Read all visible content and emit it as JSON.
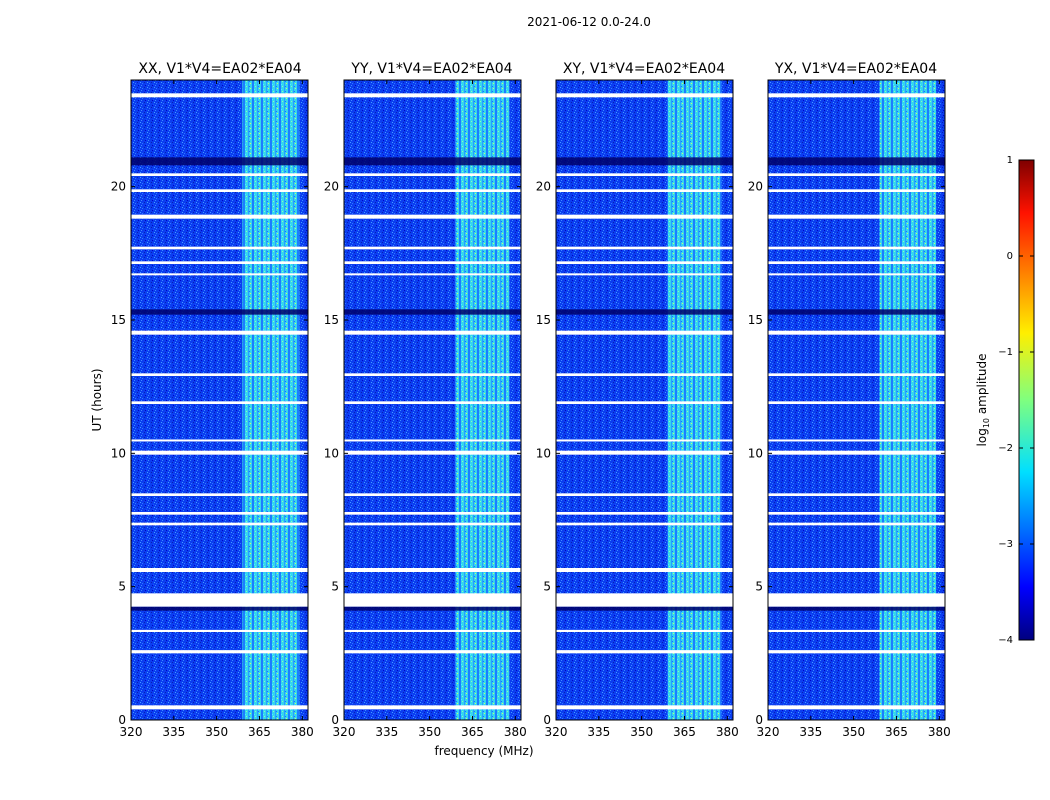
{
  "chart_data": {
    "type": "heatmap",
    "suptitle": "2021-06-12 0.0-24.0",
    "xlabel": "frequency (MHz)",
    "ylabel": "UT (hours)",
    "xlim": [
      320,
      382
    ],
    "ylim": [
      0,
      24
    ],
    "xticks": [
      320,
      335,
      350,
      365,
      380
    ],
    "yticks": [
      0,
      5,
      10,
      15,
      20
    ],
    "panels": [
      {
        "title": "XX, V1*V4=EA02*EA04",
        "bright_band_mhz": [
          359,
          379
        ]
      },
      {
        "title": "YY, V1*V4=EA02*EA04",
        "bright_band_mhz": [
          359,
          378
        ]
      },
      {
        "title": "XY, V1*V4=EA02*EA04",
        "bright_band_mhz": [
          359,
          378
        ]
      },
      {
        "title": "YX, V1*V4=EA02*EA04",
        "bright_band_mhz": [
          359,
          379
        ]
      }
    ],
    "flagged_hours": [
      [
        0.4,
        0.55
      ],
      [
        2.5,
        2.62
      ],
      [
        3.3,
        3.38
      ],
      [
        4.25,
        4.75
      ],
      [
        5.55,
        5.7
      ],
      [
        7.3,
        7.4
      ],
      [
        7.7,
        7.8
      ],
      [
        8.4,
        8.5
      ],
      [
        9.95,
        10.1
      ],
      [
        10.45,
        10.52
      ],
      [
        11.85,
        11.95
      ],
      [
        12.9,
        13.0
      ],
      [
        14.45,
        14.6
      ],
      [
        16.7,
        16.75
      ],
      [
        17.1,
        17.2
      ],
      [
        17.65,
        17.75
      ],
      [
        18.8,
        18.95
      ],
      [
        19.8,
        19.9
      ],
      [
        20.4,
        20.5
      ],
      [
        23.35,
        23.5
      ]
    ],
    "dark_hours": [
      [
        20.8,
        21.1
      ],
      [
        4.1,
        4.25
      ],
      [
        15.2,
        15.4
      ]
    ],
    "colorbar": {
      "label": "log10 amplitude",
      "label_main": "log",
      "label_sub": "10",
      "label_rest": " amplitude",
      "range": [
        -4,
        1
      ],
      "ticks": [
        "1",
        "0",
        "−1",
        "−2",
        "−3",
        "−4"
      ],
      "colormap": "jet"
    }
  }
}
